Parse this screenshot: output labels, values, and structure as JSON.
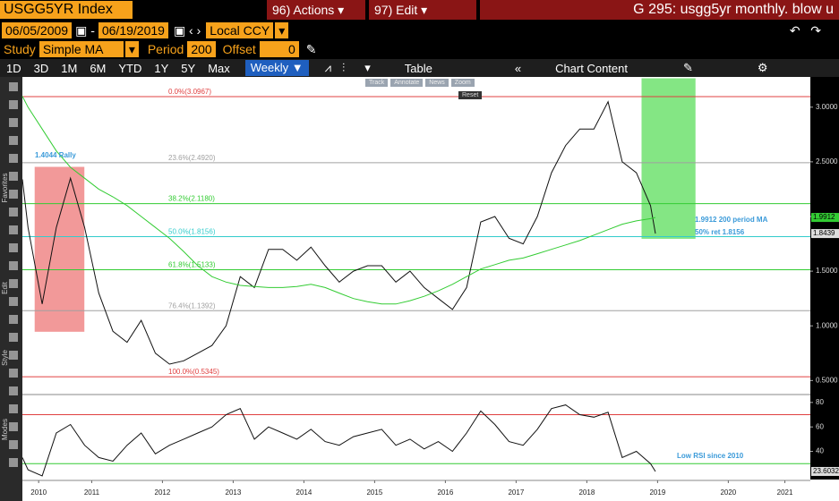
{
  "header": {
    "ticker": "USGG5YR Index",
    "actions": "96) Actions",
    "edit": "97) Edit",
    "title": "G 295: usgg5yr monthly. blow u"
  },
  "controls": {
    "start_date": "06/05/2009",
    "end_date": "06/19/2019",
    "currency": "Local CCY",
    "study_label": "Study",
    "study": "Simple MA",
    "period_label": "Period",
    "period": "200",
    "offset_label": "Offset",
    "offset": "0"
  },
  "toolbar": {
    "ranges": [
      "1D",
      "3D",
      "1M",
      "6M",
      "YTD",
      "1Y",
      "5Y",
      "Max"
    ],
    "frequency": "Weekly",
    "table": "Table",
    "chart_content": "Chart Content"
  },
  "tooltip": {
    "tools": [
      "Track",
      "Annotate",
      "News",
      "Zoom"
    ],
    "reset": "Reset"
  },
  "side_labels": [
    "Favorites",
    "Edit",
    "Style",
    "Modes"
  ],
  "chart_data": [
    {
      "type": "line",
      "x": [
        2010.52,
        2010.6,
        2010.8,
        2011.0,
        2011.2,
        2011.4,
        2011.6,
        2011.8,
        2012.0,
        2012.2,
        2012.4,
        2012.6,
        2012.8,
        2013.0,
        2013.2,
        2013.4,
        2013.6,
        2013.8,
        2014.0,
        2014.2,
        2014.4,
        2014.6,
        2014.8,
        2015.0,
        2015.2,
        2015.4,
        2015.6,
        2015.8,
        2016.0,
        2016.2,
        2016.4,
        2016.6,
        2016.8,
        2017.0,
        2017.2,
        2017.4,
        2017.6,
        2017.8,
        2018.0,
        2018.2,
        2018.4,
        2018.6,
        2018.8,
        2019.0,
        2019.2,
        2019.4,
        2019.47
      ],
      "series": [
        {
          "color": "#111111",
          "values": [
            2.34,
            1.9,
            1.2,
            1.9,
            2.35,
            1.9,
            1.3,
            0.95,
            0.85,
            1.05,
            0.75,
            0.65,
            0.68,
            0.75,
            0.82,
            1.0,
            1.45,
            1.35,
            1.7,
            1.7,
            1.6,
            1.72,
            1.55,
            1.4,
            1.5,
            1.55,
            1.55,
            1.4,
            1.5,
            1.35,
            1.25,
            1.15,
            1.35,
            1.95,
            2.0,
            1.8,
            1.75,
            2.0,
            2.4,
            2.65,
            2.8,
            2.8,
            3.05,
            2.5,
            2.4,
            2.1,
            1.8439
          ]
        },
        {
          "color": "#33cc33",
          "values": [
            3.1,
            3.0,
            2.8,
            2.6,
            2.45,
            2.35,
            2.25,
            2.18,
            2.1,
            2.0,
            1.9,
            1.8,
            1.68,
            1.55,
            1.45,
            1.4,
            1.37,
            1.36,
            1.35,
            1.35,
            1.36,
            1.38,
            1.35,
            1.3,
            1.25,
            1.22,
            1.2,
            1.2,
            1.23,
            1.27,
            1.32,
            1.38,
            1.45,
            1.52,
            1.56,
            1.6,
            1.62,
            1.66,
            1.7,
            1.74,
            1.78,
            1.83,
            1.88,
            1.93,
            1.96,
            1.98,
            1.9912
          ]
        }
      ],
      "xlim": [
        2010.52,
        2021.66
      ],
      "ylim": [
        0.38,
        3.26
      ],
      "yticks": [
        {
          "value": 3.0,
          "label": "3.0000"
        },
        {
          "value": 2.5,
          "label": "2.5000"
        },
        {
          "value": 2.0,
          "label": "2.0000"
        },
        {
          "value": 1.5,
          "label": "1.5000"
        },
        {
          "value": 1.0,
          "label": "1.0000"
        },
        {
          "value": 0.5,
          "label": "0.5000"
        }
      ],
      "levels": [
        {
          "value": 3.0967,
          "label": "0.0%(3.0967)",
          "color": "#e04040"
        },
        {
          "value": 2.492,
          "label": "23.6%(2.4920)",
          "color": "#a0a0a0"
        },
        {
          "value": 2.118,
          "label": "38.2%(2.1180)",
          "color": "#33cc33"
        },
        {
          "value": 1.8156,
          "label": "50.0%(1.8156)",
          "color": "#33cccc"
        },
        {
          "value": 1.5133,
          "label": "61.8%(1.5133)",
          "color": "#33cc33"
        },
        {
          "value": 1.1392,
          "label": "76.4%(1.1392)",
          "color": "#a0a0a0"
        },
        {
          "value": 0.5345,
          "label": "100.0%(0.5345)",
          "color": "#e04040"
        }
      ],
      "highlights": [
        {
          "x": [
            2010.7,
            2011.39
          ],
          "y": [
            0.95,
            2.45
          ],
          "color": "#f08080"
        },
        {
          "x": [
            2019.28,
            2020.03
          ],
          "y": [
            1.8,
            3.26
          ],
          "color": "#66e066"
        }
      ],
      "tags": [
        {
          "value": 1.9912,
          "color": "#33cc33"
        },
        {
          "value": 1.8439,
          "color": "#dddddd"
        }
      ],
      "annotations": [
        "1.4044 Rally",
        "1.9912 200 period MA",
        "50% ret 1.8156"
      ]
    },
    {
      "type": "line",
      "series": [
        {
          "color": "#111111",
          "values": [
            35,
            25,
            20,
            55,
            62,
            45,
            35,
            32,
            45,
            55,
            38,
            45,
            50,
            55,
            60,
            70,
            75,
            50,
            60,
            55,
            50,
            58,
            48,
            45,
            52,
            55,
            58,
            45,
            50,
            42,
            48,
            40,
            55,
            73,
            62,
            48,
            45,
            58,
            75,
            78,
            70,
            68,
            72,
            35,
            40,
            30,
            23.6032
          ]
        }
      ],
      "xlim": [
        2010.52,
        2021.66
      ],
      "ylim": [
        17,
        85
      ],
      "yticks": [
        80,
        60,
        40
      ],
      "levels": [
        {
          "value": 70,
          "color": "#e04040"
        },
        {
          "value": 30,
          "color": "#33cc33"
        }
      ],
      "tags": [
        {
          "value": 23.6032,
          "color": "#dddddd"
        }
      ],
      "xticks": [
        {
          "value": 2010.75,
          "label": "2010"
        },
        {
          "value": 2011.5,
          "label": "2011"
        },
        {
          "value": 2012.5,
          "label": "2012"
        },
        {
          "value": 2013.5,
          "label": "2013"
        },
        {
          "value": 2014.5,
          "label": "2014"
        },
        {
          "value": 2015.5,
          "label": "2015"
        },
        {
          "value": 2016.5,
          "label": "2016"
        },
        {
          "value": 2017.5,
          "label": "2017"
        },
        {
          "value": 2018.5,
          "label": "2018"
        },
        {
          "value": 2019.5,
          "label": "2019"
        },
        {
          "value": 2020.5,
          "label": "2020"
        },
        {
          "value": 2021.3,
          "label": "2021"
        }
      ],
      "annotations": [
        "Low RSI since 2010"
      ]
    }
  ]
}
